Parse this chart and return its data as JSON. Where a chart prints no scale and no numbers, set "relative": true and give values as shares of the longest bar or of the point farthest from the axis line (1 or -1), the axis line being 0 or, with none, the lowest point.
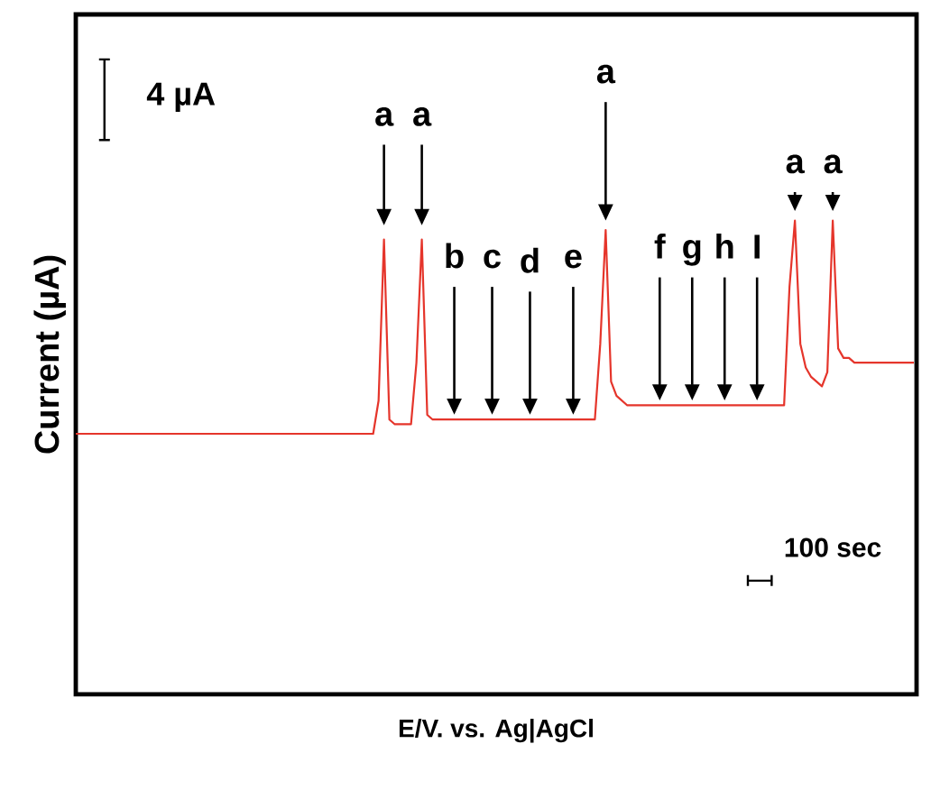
{
  "chart_data": {
    "type": "line",
    "relative": true,
    "xlabel": "E/V. vs. Ag|AgCl",
    "ylabel": "Current (µA)",
    "categories": [
      null,
      null,
      null,
      null,
      null,
      null,
      null,
      null,
      null,
      null,
      null,
      null,
      null,
      null,
      null,
      null,
      null,
      null,
      null,
      null,
      null,
      null,
      null,
      null,
      null,
      null,
      null,
      null,
      null,
      null,
      null,
      null,
      null,
      null,
      null,
      null,
      null,
      null,
      null,
      null,
      null,
      null,
      null,
      null,
      null,
      null,
      null,
      null,
      null,
      null,
      null,
      null,
      null,
      null,
      null,
      null,
      null,
      null,
      null,
      null,
      null,
      null,
      null,
      null,
      null,
      null,
      null,
      null,
      null,
      null,
      null,
      null,
      null,
      null,
      null,
      null,
      null,
      null,
      null,
      null,
      null,
      null,
      null,
      null,
      null,
      null,
      null,
      null,
      null,
      null,
      null,
      null,
      null,
      null,
      null,
      null,
      null,
      null,
      null,
      null,
      null,
      null,
      null,
      null,
      null,
      null,
      null,
      null,
      null,
      null,
      null,
      null,
      null,
      null,
      null,
      null,
      null,
      null,
      null,
      null,
      null,
      null,
      null,
      null,
      null,
      null,
      null,
      null,
      null,
      null,
      null,
      null,
      null,
      null,
      null,
      null,
      null,
      null,
      null,
      null,
      null,
      null,
      null,
      null,
      null,
      null,
      null,
      null,
      null,
      null,
      null,
      null,
      null,
      null,
      null,
      null
    ],
    "series": [
      {
        "color": "#e5352b",
        "values": [
          0.55,
          0.55,
          0.55,
          0.55,
          0.55,
          0.55,
          0.55,
          0.55,
          0.55,
          0.55,
          0.55,
          0.55,
          0.55,
          0.55,
          0.55,
          0.55,
          0.55,
          0.55,
          0.55,
          0.55,
          0.55,
          0.55,
          0.55,
          0.55,
          0.55,
          0.55,
          0.55,
          0.55,
          0.55,
          0.55,
          0.55,
          0.55,
          0.55,
          0.55,
          0.55,
          0.55,
          0.55,
          0.55,
          0.55,
          0.55,
          0.55,
          0.55,
          0.55,
          0.55,
          0.55,
          0.55,
          0.55,
          0.55,
          0.55,
          0.55,
          0.55,
          0.55,
          0.55,
          0.55,
          0.55,
          0.55,
          0.62,
          0.96,
          0.58,
          0.57,
          0.57,
          0.57,
          0.57,
          0.7,
          0.96,
          0.59,
          0.58,
          0.58,
          0.58,
          0.58,
          0.58,
          0.58,
          0.58,
          0.58,
          0.58,
          0.58,
          0.58,
          0.58,
          0.58,
          0.58,
          0.58,
          0.58,
          0.58,
          0.58,
          0.58,
          0.58,
          0.58,
          0.58,
          0.58,
          0.58,
          0.58,
          0.58,
          0.58,
          0.58,
          0.58,
          0.58,
          0.58,
          0.74,
          0.98,
          0.66,
          0.63,
          0.62,
          0.61,
          0.61,
          0.61,
          0.61,
          0.61,
          0.61,
          0.61,
          0.61,
          0.61,
          0.61,
          0.61,
          0.61,
          0.61,
          0.61,
          0.61,
          0.61,
          0.61,
          0.61,
          0.61,
          0.61,
          0.61,
          0.61,
          0.61,
          0.61,
          0.61,
          0.61,
          0.61,
          0.61,
          0.61,
          0.61,
          0.86,
          1.0,
          0.74,
          0.69,
          0.67,
          0.66,
          0.65,
          0.68,
          1.0,
          0.73,
          0.71,
          0.71,
          0.7,
          0.7,
          0.7,
          0.7,
          0.7,
          0.7,
          0.7,
          0.7,
          0.7,
          0.7,
          0.7,
          0.7
        ]
      }
    ],
    "annotations": [
      "4 µA",
      "100 sec",
      "a",
      "a",
      "b",
      "c",
      "d",
      "e",
      "a",
      "f",
      "g",
      "h",
      "I",
      "a",
      "a"
    ]
  }
}
